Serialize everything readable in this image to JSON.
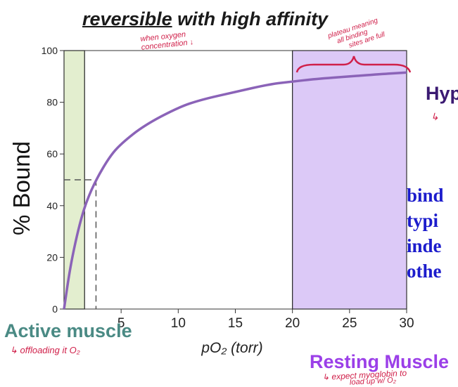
{
  "header": {
    "title_underlined": "reversible",
    "title_rest": " with high affinity"
  },
  "annotations": {
    "active_muscle": "Active muscle",
    "resting_muscle": "Resting Muscle",
    "active_note": "↳ offloading it O₂",
    "resting_note_line1": "↳ expect myoglobin to",
    "resting_note_line2": "load up w/ O₂",
    "top_note_line1": "when oxygen",
    "top_note_line2": "concentration ↓",
    "plateau_note_line1": "plateau meaning",
    "plateau_note_line2": "all binding",
    "plateau_note_line3": "sites are full",
    "side_hyp": "Hyp",
    "side_note": "↳",
    "side_text": [
      "bind",
      "typi",
      "inde",
      "othe"
    ]
  },
  "colors": {
    "curve": "#8b63b8",
    "active_region": "#e3eecf",
    "resting_region": "#dcc9f7",
    "active_label": "#4a8a84",
    "resting_label": "#9b3fe8",
    "side_text": "#1c1ccc",
    "handwriting": "#d0204a"
  },
  "chart_data": {
    "type": "line",
    "title": "",
    "xlabel": "pO₂ (torr)",
    "ylabel": "% Bound",
    "xlim": [
      0,
      30
    ],
    "ylim": [
      0,
      100
    ],
    "x_ticks": [
      5,
      10,
      15,
      20,
      25,
      30
    ],
    "y_ticks": [
      0,
      20,
      40,
      60,
      80,
      100
    ],
    "grid": false,
    "legend": "none",
    "series": [
      {
        "x": [
          0,
          0.5,
          1,
          1.5,
          2,
          2.8,
          4,
          5,
          7,
          10,
          12,
          15,
          18,
          20,
          22,
          25,
          28,
          30
        ],
        "y": [
          0,
          15,
          26,
          35,
          42,
          50,
          59,
          64,
          71,
          78,
          81,
          84,
          87,
          88,
          89,
          90,
          91,
          91.5
        ]
      }
    ],
    "reference_point": {
      "x": 2.8,
      "y": 50
    },
    "highlight_regions": [
      {
        "name": "Active muscle",
        "x_range": [
          0,
          1.8
        ]
      },
      {
        "name": "Resting Muscle",
        "x_range": [
          20,
          30
        ]
      }
    ]
  }
}
